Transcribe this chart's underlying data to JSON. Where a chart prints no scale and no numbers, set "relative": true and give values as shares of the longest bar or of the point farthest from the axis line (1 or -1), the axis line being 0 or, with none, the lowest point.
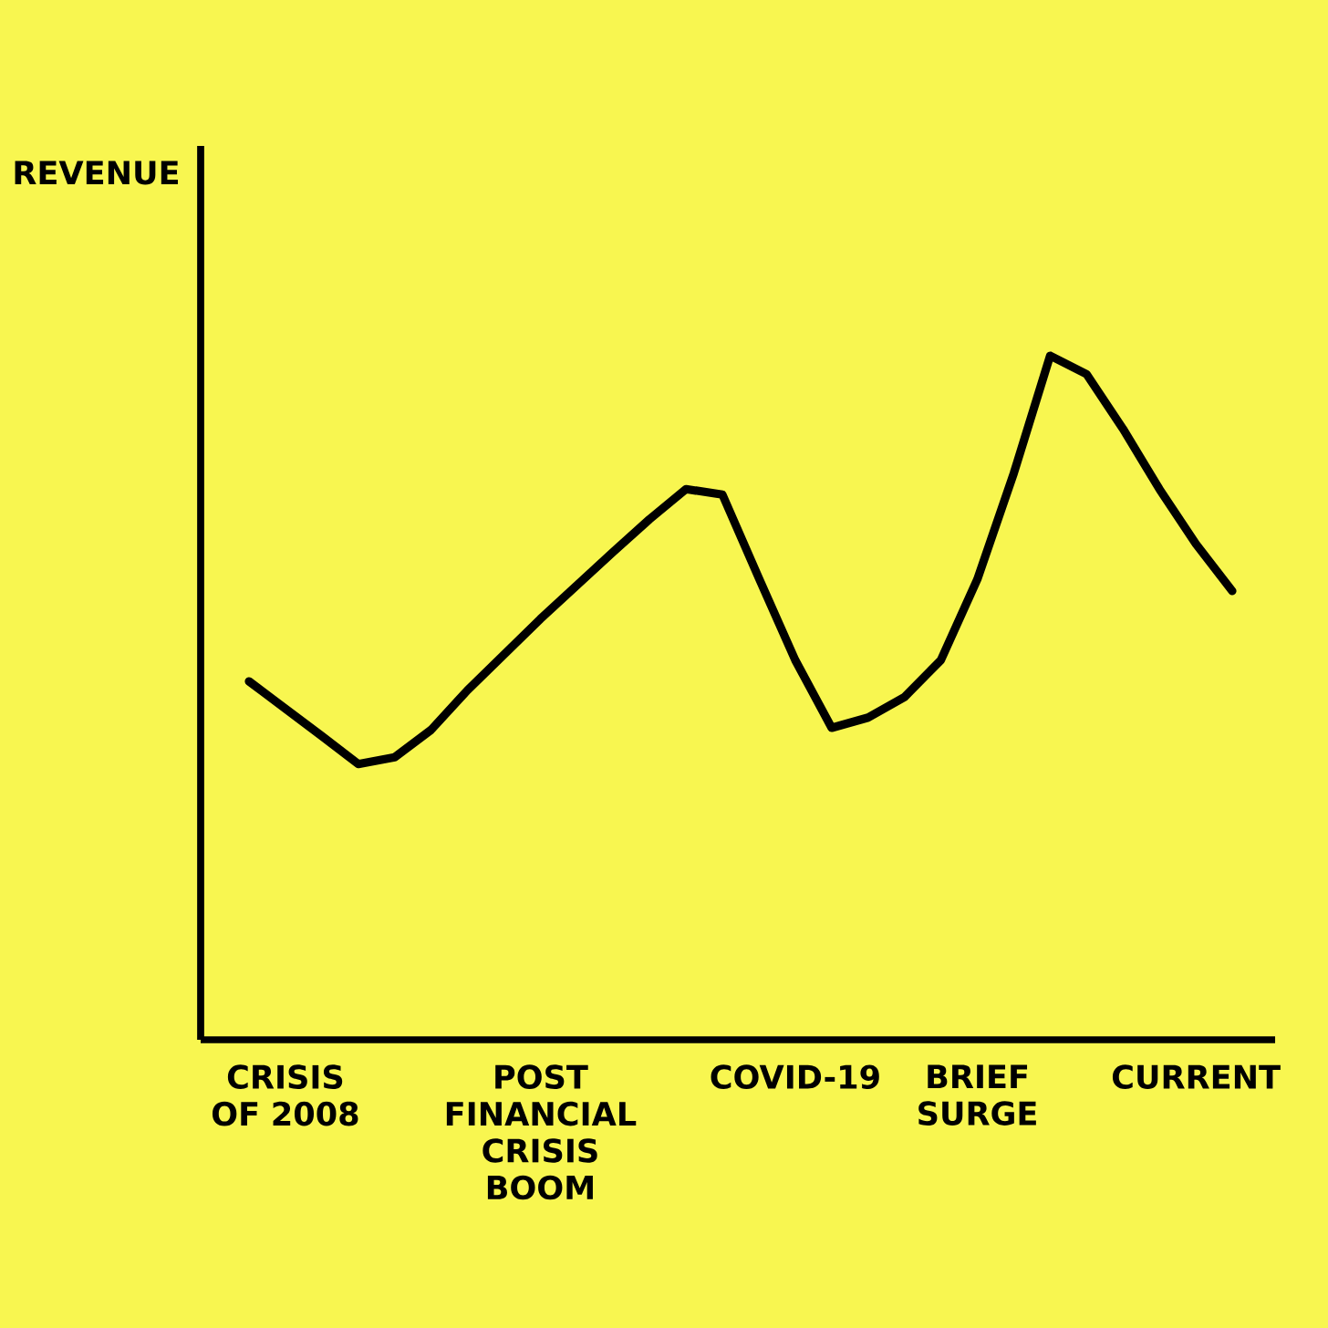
{
  "chart_data": {
    "type": "line",
    "relative": true,
    "annotations": [
      "REVENUE"
    ],
    "color": "#000000",
    "categories": [
      null,
      "CRISIS OF 2008",
      null,
      null,
      null,
      null,
      null,
      null,
      "POST FINANCIAL CRISIS BOOM",
      null,
      null,
      null,
      null,
      null,
      null,
      "COVID-19",
      null,
      null,
      null,
      null,
      "BRIEF SURGE",
      null,
      null,
      null,
      null,
      null,
      "CURRENT",
      null
    ],
    "values": [
      0.524,
      0.484,
      0.444,
      0.403,
      0.413,
      0.453,
      0.511,
      0.563,
      0.615,
      0.664,
      0.713,
      0.761,
      0.805,
      0.797,
      0.675,
      0.555,
      0.456,
      0.471,
      0.501,
      0.555,
      0.673,
      0.828,
      1.0,
      0.973,
      0.893,
      0.805,
      0.725,
      0.656
    ]
  }
}
